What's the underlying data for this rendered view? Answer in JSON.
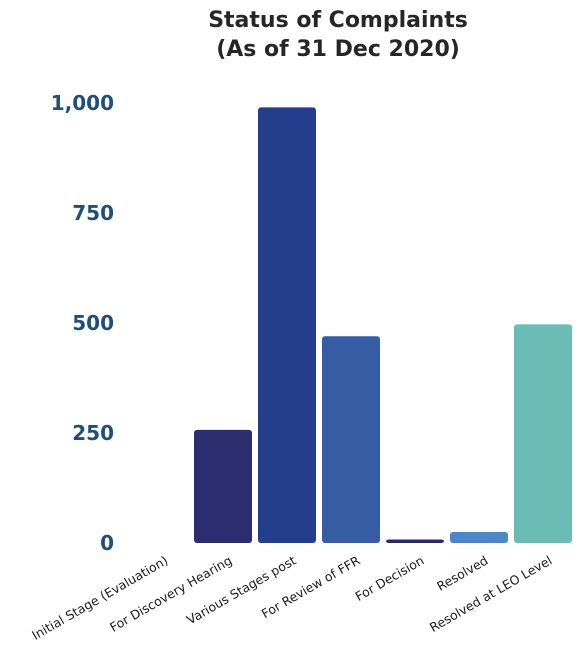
{
  "chart_data": {
    "type": "bar",
    "title_lines": [
      "Status of Complaints",
      "(As of 31 Dec 2020)"
    ],
    "xlabel": "",
    "ylabel": "",
    "ylim": [
      0,
      1000
    ],
    "yticks": [
      0,
      250,
      500,
      750,
      1000
    ],
    "ytick_labels": [
      "0",
      "250",
      "500",
      "750",
      "1,000"
    ],
    "grid": false,
    "categories": [
      "Initial Stage (Evaluation)",
      "For Discovery Hearing",
      "Various Stages post",
      "For Review of FFR",
      "For Decision",
      "Resolved",
      "Resolved at LEO Level"
    ],
    "values": [
      0,
      257,
      990,
      470,
      8,
      25,
      497
    ],
    "colors": [
      "#2c2d6e",
      "#2c2d6e",
      "#253d8d",
      "#365ca3",
      "#26296a",
      "#4d86c8",
      "#6bbcb5"
    ]
  }
}
